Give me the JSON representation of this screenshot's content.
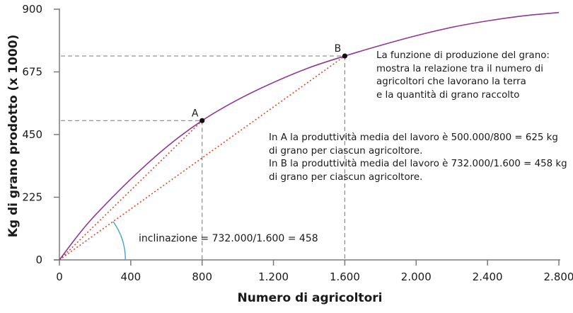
{
  "chart_data": {
    "type": "line",
    "title": "",
    "xlabel": "Numero di agricoltori",
    "ylabel": "Kg di grano prodotto (x 1000)",
    "xlim": [
      0,
      2800
    ],
    "ylim": [
      0,
      900
    ],
    "x_ticks": [
      0,
      400,
      800,
      1200,
      1600,
      2000,
      2400,
      2800
    ],
    "x_tick_labels": [
      "0",
      "400",
      "800",
      "1.200",
      "1.600",
      "2.000",
      "2.400",
      "2.800"
    ],
    "y_ticks": [
      0,
      225,
      450,
      675,
      900
    ],
    "y_tick_labels": [
      "0",
      "225",
      "450",
      "675",
      "900"
    ],
    "grid": false,
    "series": [
      {
        "name": "Funzione di produzione del grano",
        "color": "#8e3a8e",
        "x": [
          0,
          100,
          200,
          400,
          600,
          800,
          1000,
          1200,
          1400,
          1600,
          1800,
          2000,
          2200,
          2400,
          2600,
          2800
        ],
        "y": [
          0,
          85,
          160,
          290,
          405,
          500,
          575,
          637,
          690,
          732,
          770,
          805,
          835,
          858,
          876,
          888
        ]
      }
    ],
    "points": [
      {
        "label": "A",
        "x": 800,
        "y": 500
      },
      {
        "label": "B",
        "x": 1600,
        "y": 732
      }
    ],
    "rays": [
      {
        "to": "A",
        "slope": 625,
        "color": "#d9472b",
        "style": "dotted"
      },
      {
        "to": "B",
        "slope": 458,
        "color": "#d9472b",
        "style": "dotted"
      }
    ],
    "angle_arc": {
      "color": "#4aa3d0",
      "radius_x": 370
    },
    "annotations": {
      "slope_label": "inclinazione = 732.000/1.600 = 458",
      "description": [
        "La funzione di produzione del grano:",
        "mostra la relazione tra il numero di",
        "agricoltori che lavorano la terra",
        "e la quantità di grano raccolto"
      ],
      "productivity": [
        "In A la produttività media del lavoro è 500.000/800 = 625 kg",
        "di grano per ciascun agricoltore.",
        "In B la produttività media del lavoro è 732.000/1.600 = 458 kg",
        "di grano per ciascun agricoltore."
      ]
    }
  }
}
